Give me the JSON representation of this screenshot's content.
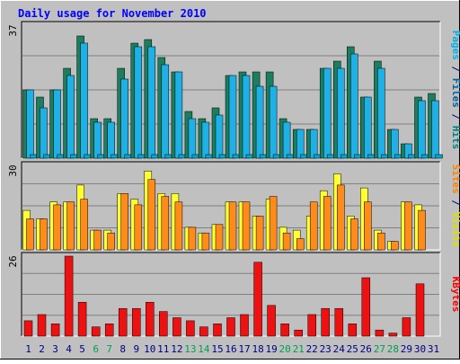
{
  "chart_data": [
    {
      "type": "bar",
      "title": "Daily usage for November 2010",
      "ymax_label": "37",
      "ylim": [
        0,
        37
      ],
      "axis_label_parts": [
        {
          "text": "Pages",
          "color": "#00b0e8"
        },
        {
          "text": " / ",
          "color": "#000080"
        },
        {
          "text": "Files",
          "color": "#0060a0"
        },
        {
          "text": " / ",
          "color": "#000080"
        },
        {
          "text": "Hits",
          "color": "#008080"
        }
      ],
      "series": [
        {
          "name": "Hits",
          "color": "#1b7f5f",
          "values": [
            19,
            17,
            19,
            25,
            34,
            11,
            11,
            25,
            32,
            33,
            28,
            24,
            13,
            11,
            14,
            23,
            24,
            24,
            24,
            11,
            8,
            8,
            25,
            27,
            31,
            17,
            27,
            8,
            4,
            17,
            18
          ]
        },
        {
          "name": "Files",
          "color": "#1fb1e6",
          "values": [
            19,
            14,
            19,
            23,
            32,
            10,
            10,
            22,
            31,
            31,
            26,
            24,
            11,
            10,
            12,
            23,
            23,
            20,
            20,
            10,
            8,
            8,
            25,
            25,
            29,
            17,
            25,
            8,
            4,
            16,
            16
          ]
        },
        {
          "name": "Pages",
          "color": "#00a8d8",
          "values": [
            1,
            1,
            1,
            1,
            1,
            1,
            1,
            1,
            1,
            1,
            1,
            1,
            1,
            1,
            1,
            1,
            1,
            1,
            1,
            1,
            1,
            1,
            1,
            1,
            1,
            1,
            1,
            1,
            1,
            1,
            1
          ]
        }
      ]
    },
    {
      "type": "bar",
      "ymax_label": "30",
      "ylim": [
        0,
        30
      ],
      "axis_label_parts": [
        {
          "text": "Sites",
          "color": "#ff8000"
        },
        {
          "text": " / ",
          "color": "#000080"
        },
        {
          "text": "Visits",
          "color": "#e0e000"
        }
      ],
      "series": [
        {
          "name": "Visits",
          "color": "#ffff33",
          "values": [
            14,
            11,
            17,
            17,
            23,
            7,
            7,
            20,
            18,
            28,
            20,
            20,
            8,
            6,
            9,
            17,
            17,
            12,
            18,
            8,
            7,
            12,
            21,
            27,
            12,
            22,
            7,
            3,
            17,
            16,
            0
          ]
        },
        {
          "name": "Sites",
          "color": "#ff8c1a",
          "values": [
            11,
            11,
            16,
            17,
            18,
            7,
            6,
            20,
            16,
            25,
            19,
            17,
            8,
            6,
            9,
            17,
            17,
            12,
            19,
            6,
            4,
            17,
            19,
            23,
            11,
            17,
            6,
            3,
            17,
            14,
            0
          ]
        }
      ]
    },
    {
      "type": "bar",
      "ymax_label": "26",
      "ylim": [
        0,
        26
      ],
      "axis_label_parts": [
        {
          "text": "KBytes",
          "color": "#ff0000"
        }
      ],
      "series": [
        {
          "name": "KBytes",
          "color": "#ee1111",
          "values": [
            5,
            7,
            4,
            26,
            11,
            3,
            4,
            9,
            9,
            11,
            8,
            6,
            5,
            3,
            4,
            6,
            7,
            24,
            10,
            4,
            2,
            7,
            9,
            9,
            4,
            19,
            2,
            1,
            6,
            17,
            0
          ]
        }
      ]
    }
  ],
  "days": [
    "1",
    "2",
    "3",
    "4",
    "5",
    "6",
    "7",
    "8",
    "9",
    "10",
    "11",
    "12",
    "13",
    "14",
    "15",
    "16",
    "17",
    "18",
    "19",
    "20",
    "21",
    "22",
    "23",
    "24",
    "25",
    "26",
    "27",
    "28",
    "29",
    "30",
    "31"
  ],
  "weekend_days": [
    "6",
    "7",
    "13",
    "14",
    "20",
    "21",
    "27",
    "28"
  ],
  "day_label_color": "#000080",
  "weekend_label_color": "#00a050",
  "colors": {
    "background": "#c0c0c0",
    "plot": "#c0c0c0",
    "grid": "#808080",
    "border_dark": "#808080",
    "border_light": "#ffffff",
    "title": "#0000ff"
  }
}
